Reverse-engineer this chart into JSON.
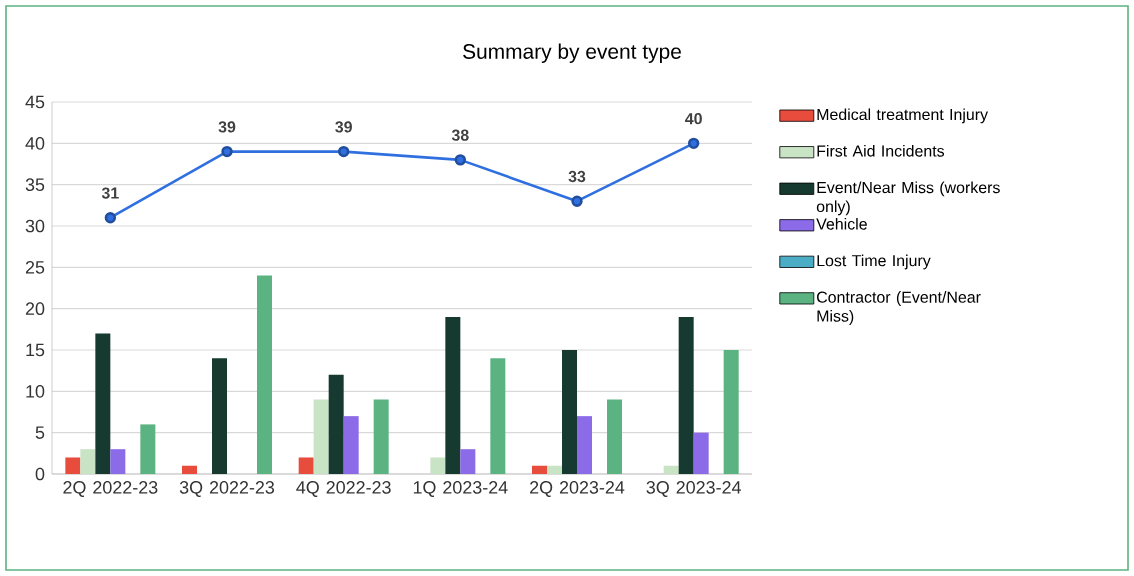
{
  "chart_data": {
    "type": "bar",
    "title": "Summary by event type",
    "categories": [
      "2Q 2022-23",
      "3Q 2022-23",
      "4Q 2022-23",
      "1Q 2023-24",
      "2Q 2023-24",
      "3Q 2023-24"
    ],
    "series": [
      {
        "name": "Medical treatment Injury",
        "color": "#e84c3d",
        "values": [
          2,
          1,
          2,
          0,
          1,
          0
        ]
      },
      {
        "name": "First Aid Incidents",
        "color": "#c9e3c5",
        "values": [
          3,
          0,
          9,
          2,
          1,
          1
        ]
      },
      {
        "name": "Event/Near Miss (workers only)",
        "color": "#163a30",
        "values": [
          17,
          14,
          12,
          19,
          15,
          19
        ]
      },
      {
        "name": "Vehicle",
        "color": "#8c6be8",
        "values": [
          3,
          0,
          7,
          3,
          7,
          5
        ]
      },
      {
        "name": "Lost Time Injury",
        "color": "#4bacc6",
        "values": [
          0,
          0,
          0,
          0,
          0,
          0
        ]
      },
      {
        "name": "Contractor (Event/Near Miss)",
        "color": "#5ab381",
        "values": [
          6,
          24,
          9,
          14,
          9,
          15
        ]
      },
      {
        "type": "line",
        "color": "#2f6fe0",
        "marker": "circle",
        "values": [
          31,
          39,
          39,
          38,
          33,
          40
        ],
        "value_labels": [
          "31",
          "39",
          "39",
          "38",
          "33",
          "40"
        ]
      }
    ],
    "ylim": [
      0,
      45
    ],
    "yticks": [
      0,
      5,
      10,
      15,
      20,
      25,
      30,
      35,
      40,
      45
    ],
    "grid": "y",
    "legend": "right"
  }
}
